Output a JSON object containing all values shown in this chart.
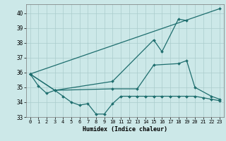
{
  "xlabel": "Humidex (Indice chaleur)",
  "bg_color": "#cce8e8",
  "grid_color": "#aacccc",
  "line_color": "#1e6e6e",
  "xlim": [
    -0.5,
    23.5
  ],
  "ylim": [
    33.0,
    40.6
  ],
  "yticks": [
    33,
    34,
    35,
    36,
    37,
    38,
    39,
    40
  ],
  "xticks": [
    0,
    1,
    2,
    3,
    4,
    5,
    6,
    7,
    8,
    9,
    10,
    11,
    12,
    13,
    14,
    15,
    16,
    17,
    18,
    19,
    20,
    21,
    22,
    23
  ],
  "series": [
    {
      "x": [
        0,
        1,
        2,
        3,
        4,
        5,
        6,
        7,
        8,
        9,
        10,
        11,
        12,
        13,
        14,
        15,
        16,
        17,
        18,
        19,
        20,
        21,
        22,
        23
      ],
      "y": [
        35.9,
        35.1,
        34.6,
        34.8,
        34.4,
        34.0,
        33.8,
        33.9,
        33.2,
        33.2,
        33.9,
        34.4,
        34.4,
        34.4,
        34.4,
        34.4,
        34.4,
        34.4,
        34.4,
        34.4,
        34.4,
        34.3,
        34.2,
        34.1
      ]
    },
    {
      "x": [
        0,
        3,
        10,
        13,
        15,
        18,
        19,
        20,
        22,
        23
      ],
      "y": [
        35.9,
        34.8,
        34.9,
        34.9,
        36.5,
        36.6,
        36.8,
        35.0,
        34.4,
        34.2
      ]
    },
    {
      "x": [
        0,
        3,
        10,
        15,
        16,
        18,
        19
      ],
      "y": [
        35.9,
        34.8,
        35.4,
        38.2,
        37.4,
        39.6,
        39.5
      ]
    },
    {
      "x": [
        0,
        23
      ],
      "y": [
        35.9,
        40.3
      ]
    }
  ]
}
